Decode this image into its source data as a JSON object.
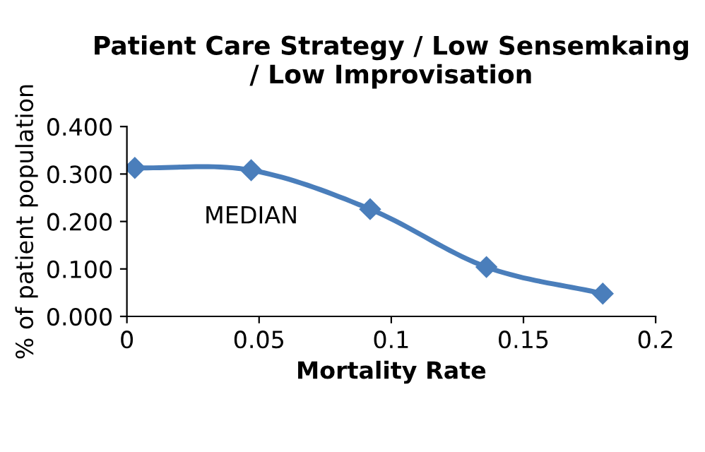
{
  "chart_data": {
    "type": "line",
    "title": "Patient Care Strategy / Low Sensemkaing\n/ Low Improvisation",
    "xlabel": "Mortality Rate",
    "ylabel": "% of patient population",
    "x": [
      0.003,
      0.047,
      0.092,
      0.136,
      0.18
    ],
    "series": [
      {
        "color": "#4a7ebb",
        "values": [
          0.313,
          0.308,
          0.226,
          0.104,
          0.048
        ]
      }
    ],
    "xlim": [
      0,
      0.2
    ],
    "xticks": [
      0,
      0.05,
      0.1,
      0.15,
      0.2
    ],
    "ylim": [
      0,
      0.4
    ],
    "yticks": [
      {
        "value": 0,
        "label": "0.000"
      },
      {
        "value": 0.1,
        "label": "0.100"
      },
      {
        "value": 0.2,
        "label": "0.200"
      },
      {
        "value": 0.3,
        "label": "0.300"
      },
      {
        "value": 0.4,
        "label": "0.400"
      }
    ],
    "annotations": [
      {
        "text": "MEDIAN",
        "x": 0.047,
        "y": 0.308
      }
    ],
    "marker": "diamond",
    "line_style": "solid",
    "grid": false,
    "legend": false
  }
}
